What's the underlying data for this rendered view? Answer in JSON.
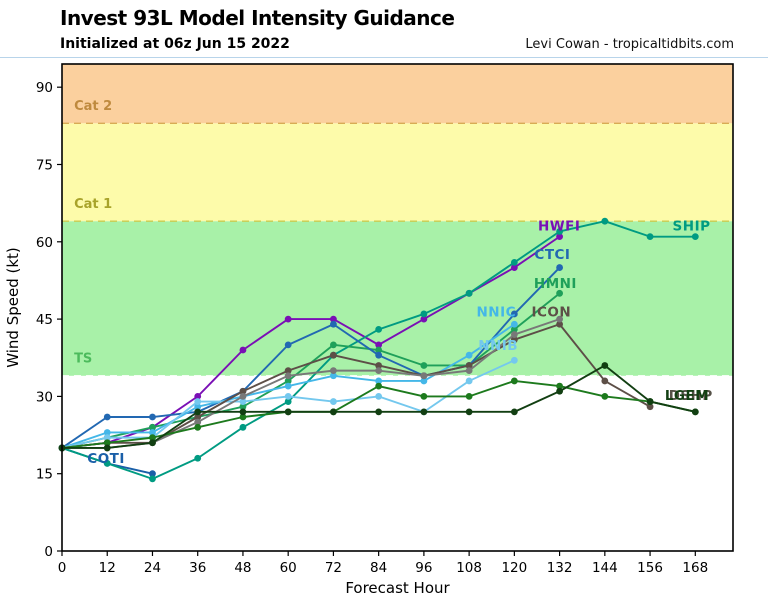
{
  "header": {
    "title": "Invest 93L Model Intensity Guidance",
    "subtitle": "Initialized at 06z Jun 15 2022",
    "credit": "Levi Cowan - tropicaltidbits.com"
  },
  "chart_data": {
    "type": "line",
    "title": "Invest 93L Model Intensity Guidance",
    "xlabel": "Forecast Hour",
    "ylabel": "Wind Speed (kt)",
    "xlim": [
      0,
      178
    ],
    "ylim": [
      0,
      94.5
    ],
    "xticks": [
      0,
      12,
      24,
      36,
      48,
      60,
      72,
      84,
      96,
      108,
      120,
      132,
      144,
      156,
      168
    ],
    "yticks": [
      0,
      15,
      30,
      45,
      60,
      75,
      90
    ],
    "grid": false,
    "bands": [
      {
        "name": "below-ts",
        "from": 0,
        "to": 34,
        "color": "#ffffff"
      },
      {
        "name": "ts",
        "from": 34,
        "to": 64,
        "color": "#a8f1a8"
      },
      {
        "name": "cat1",
        "from": 64,
        "to": 83,
        "color": "#fdfbaa"
      },
      {
        "name": "cat2",
        "from": 83,
        "to": 94.5,
        "color": "#fbd09e"
      }
    ],
    "thresholds": [
      {
        "label": "TS",
        "value": 34,
        "line_color": "#ffffff",
        "label_color": "#4cbb5c",
        "label_hour": 3.2,
        "label_kt": 37.5
      },
      {
        "label": "Cat 1",
        "value": 64,
        "line_color": "#cbcb50",
        "label_color": "#a8a32b",
        "label_hour": 3.2,
        "label_kt": 67.5
      },
      {
        "label": "Cat 2",
        "value": 83,
        "line_color": "#d8ab55",
        "label_color": "#bf8a3e",
        "label_hour": 3.2,
        "label_kt": 86.5
      }
    ],
    "series": [
      {
        "name": "COTI",
        "color": "#1a5fa8",
        "hours": [
          0,
          12,
          24
        ],
        "values": [
          20,
          17,
          15
        ]
      },
      {
        "name": "HWFI",
        "color": "#7a0fb5",
        "hours": [
          0,
          12,
          24,
          36,
          48,
          60,
          72,
          84,
          96,
          108,
          120,
          132
        ],
        "values": [
          20,
          21,
          24,
          30,
          39,
          45,
          45,
          40,
          45,
          50,
          55,
          61
        ]
      },
      {
        "name": "SHIP",
        "color": "#009b82",
        "hours": [
          0,
          12,
          24,
          36,
          48,
          60,
          72,
          84,
          96,
          108,
          120,
          132,
          144,
          156,
          168
        ],
        "values": [
          20,
          17,
          14,
          18,
          24,
          29,
          38,
          43,
          46,
          50,
          56,
          62,
          64,
          61,
          61
        ]
      },
      {
        "name": "HMNI",
        "color": "#1fa05a",
        "hours": [
          0,
          12,
          24,
          36,
          48,
          60,
          72,
          84,
          96,
          108,
          120,
          132
        ],
        "values": [
          20,
          22,
          24,
          26,
          28,
          33,
          40,
          39,
          36,
          36,
          43,
          50
        ]
      },
      {
        "name": "CTCI",
        "color": "#2268b2",
        "hours": [
          0,
          12,
          24,
          36,
          48,
          60,
          72,
          84,
          96,
          108,
          120,
          132
        ],
        "values": [
          20,
          26,
          26,
          27,
          31,
          40,
          44,
          38,
          34,
          36,
          46,
          55
        ]
      },
      {
        "name": "NNIC",
        "color": "#44b7e8",
        "hours": [
          0,
          12,
          24,
          36,
          48,
          60,
          72,
          84,
          96,
          108,
          120
        ],
        "values": [
          20,
          23,
          23,
          28,
          30,
          32,
          34,
          33,
          33,
          38,
          44
        ]
      },
      {
        "name": "NNIB",
        "color": "#74c8ee",
        "hours": [
          0,
          12,
          24,
          36,
          48,
          60,
          72,
          84,
          96,
          108,
          120
        ],
        "values": [
          20,
          22,
          22,
          29,
          29,
          30,
          29,
          30,
          27,
          33,
          37
        ]
      },
      {
        "name": "ICON",
        "color": "#5d4f47",
        "hours": [
          0,
          12,
          24,
          36,
          48,
          60,
          72,
          84,
          96,
          108,
          120,
          132,
          144,
          156
        ],
        "values": [
          20,
          21,
          21,
          26,
          31,
          35,
          38,
          36,
          34,
          36,
          41,
          44,
          33,
          28
        ]
      },
      {
        "name": "unlabeled-gray",
        "color": "#787878",
        "hours": [
          0,
          12,
          24,
          36,
          48,
          60,
          72,
          84,
          96,
          108,
          120,
          132
        ],
        "values": [
          20,
          20,
          21,
          25,
          30,
          34,
          35,
          35,
          34,
          35,
          42,
          45
        ]
      },
      {
        "name": "DSHP",
        "color": "#1d7a1d",
        "hours": [
          0,
          12,
          24,
          36,
          48,
          60,
          72,
          84,
          96,
          108,
          120,
          132,
          144,
          156,
          168
        ],
        "values": [
          20,
          21,
          22,
          24,
          26,
          27,
          27,
          32,
          30,
          30,
          33,
          32,
          30,
          29,
          27
        ]
      },
      {
        "name": "LGEM",
        "color": "#123f12",
        "hours": [
          0,
          12,
          24,
          36,
          48,
          60,
          72,
          84,
          96,
          108,
          120,
          132,
          144,
          156,
          168
        ],
        "values": [
          20,
          20,
          21,
          27,
          27,
          27,
          27,
          27,
          27,
          27,
          27,
          31,
          36,
          29,
          27
        ]
      }
    ],
    "series_labels": [
      {
        "text": "COTI",
        "hour": 11.7,
        "kt": 18.0,
        "color": "#1a5fa8"
      },
      {
        "text": "HWFI",
        "hour": 131.9,
        "kt": 63.2,
        "color": "#7a0fb5"
      },
      {
        "text": "SHIP",
        "hour": 167.0,
        "kt": 63.2,
        "color": "#009b82"
      },
      {
        "text": "CTCI",
        "hour": 130.1,
        "kt": 57.6,
        "color": "#2268b2"
      },
      {
        "text": "HMNI",
        "hour": 130.9,
        "kt": 52.0,
        "color": "#1fa05a"
      },
      {
        "text": "NNIC",
        "hour": 115.2,
        "kt": 46.5,
        "color": "#44b7e8"
      },
      {
        "text": "ICON",
        "hour": 129.8,
        "kt": 46.5,
        "color": "#5d4f47"
      },
      {
        "text": "NNIB",
        "hour": 115.7,
        "kt": 40.0,
        "color": "#74c8ee"
      },
      {
        "text": "DSHP",
        "hour": 166.8,
        "kt": 30.3,
        "color": "#555047"
      },
      {
        "text": "LGEM",
        "hour": 165.8,
        "kt": 30.3,
        "color": "#123f12"
      }
    ],
    "legend_position": "inline-end-labels"
  }
}
